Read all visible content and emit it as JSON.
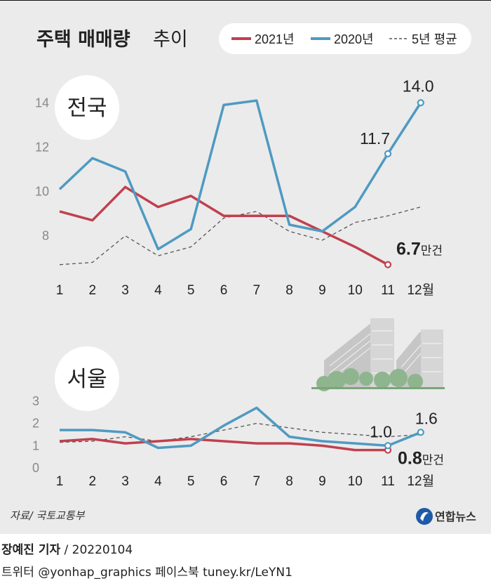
{
  "title": {
    "main": "주택 매매량",
    "sub": "추이"
  },
  "legend": [
    {
      "label": "2021년",
      "color": "#c0404e",
      "style": "solid"
    },
    {
      "label": "2020년",
      "color": "#4f9ac1",
      "style": "solid"
    },
    {
      "label": "5년 평균",
      "color": "#555555",
      "style": "dashed"
    }
  ],
  "colors": {
    "series_2021": "#c0404e",
    "series_2020": "#4f9ac1",
    "avg": "#555555",
    "background": "#ebebeb",
    "tree": "#8fb58f",
    "building": "#bdbdbd"
  },
  "chart_data": [
    {
      "type": "line",
      "badge": "전국",
      "x": [
        1,
        2,
        3,
        4,
        5,
        6,
        7,
        8,
        9,
        10,
        11,
        12
      ],
      "x_tick_labels": [
        "1",
        "2",
        "3",
        "4",
        "5",
        "6",
        "7",
        "8",
        "9",
        "10",
        "11",
        "12월"
      ],
      "y_ticks": [
        8,
        10,
        12,
        14
      ],
      "ylim": [
        6.5,
        14.8
      ],
      "series": [
        {
          "name": "2021년",
          "values": [
            9.1,
            8.7,
            10.2,
            9.3,
            9.8,
            8.9,
            8.9,
            8.9,
            8.2,
            7.5,
            6.7,
            null
          ]
        },
        {
          "name": "2020년",
          "values": [
            10.1,
            11.5,
            10.9,
            7.4,
            8.3,
            13.9,
            14.1,
            8.5,
            8.2,
            9.3,
            11.7,
            14.0
          ]
        },
        {
          "name": "5년 평균",
          "values": [
            6.7,
            6.8,
            8.0,
            7.1,
            7.5,
            8.8,
            9.1,
            8.2,
            7.8,
            8.6,
            8.9,
            9.3
          ]
        }
      ],
      "annotations": [
        {
          "series": "2021년",
          "x": 11,
          "text": "6.7",
          "unit": "만건"
        },
        {
          "series": "2020년",
          "x": 11,
          "text": "11.7"
        },
        {
          "series": "2020년",
          "x": 12,
          "text": "14.0"
        }
      ]
    },
    {
      "type": "line",
      "badge": "서울",
      "x": [
        1,
        2,
        3,
        4,
        5,
        6,
        7,
        8,
        9,
        10,
        11,
        12
      ],
      "x_tick_labels": [
        "1",
        "2",
        "3",
        "4",
        "5",
        "6",
        "7",
        "8",
        "9",
        "10",
        "11",
        "12월"
      ],
      "y_ticks": [
        0,
        1,
        2,
        3
      ],
      "ylim": [
        0,
        3
      ],
      "series": [
        {
          "name": "2021년",
          "values": [
            1.2,
            1.3,
            1.1,
            1.2,
            1.3,
            1.2,
            1.1,
            1.1,
            1.0,
            0.8,
            0.8,
            null
          ]
        },
        {
          "name": "2020년",
          "values": [
            1.7,
            1.7,
            1.6,
            0.9,
            1.0,
            1.9,
            2.7,
            1.4,
            1.2,
            1.1,
            1.0,
            1.6
          ]
        },
        {
          "name": "5년 평균",
          "values": [
            1.15,
            1.2,
            1.4,
            1.2,
            1.4,
            1.7,
            2.0,
            1.8,
            1.6,
            1.5,
            1.4,
            1.5
          ]
        }
      ],
      "annotations": [
        {
          "series": "2021년",
          "x": 11,
          "text": "0.8",
          "unit": "만건"
        },
        {
          "series": "2020년",
          "x": 11,
          "text": "1.0"
        },
        {
          "series": "2020년",
          "x": 12,
          "text": "1.6"
        }
      ]
    }
  ],
  "source": "자료/ 국토교통부",
  "logo": "연합뉴스",
  "credits": {
    "author": "장예진 기자",
    "date": " / 20220104",
    "social": "트위터 @yonhap_graphics  페이스북 tuney.kr/LeYN1"
  }
}
